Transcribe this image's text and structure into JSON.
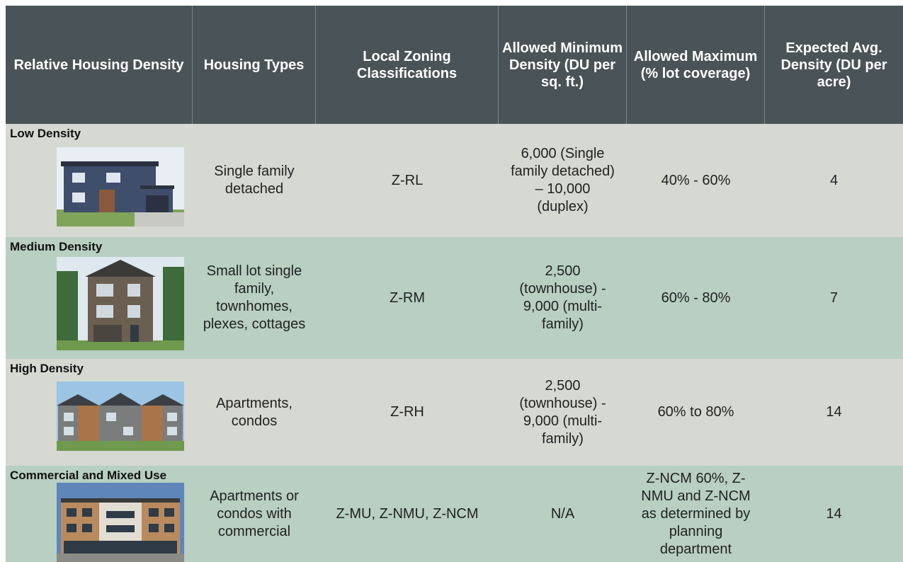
{
  "table": {
    "headers": [
      "Relative Housing Density",
      "Housing Types",
      "Local Zoning Classifications",
      "Allowed Minimum Density (DU per sq. ft.)",
      "Allowed Maximum (% lot coverage)",
      "Expected Avg. Density (DU per acre)"
    ],
    "rows": [
      [
        "Low Density",
        "Single family detached",
        "Z-RL",
        "6,000 (Single family detached) – 10,000 (duplex)",
        "40% - 60%",
        "4"
      ],
      [
        "Medium Density",
        "Small lot single family, townhomes, plexes, cottages",
        "Z-RM",
        "2,500 (townhouse) - 9,000 (multi-family)",
        "60% - 80%",
        "7"
      ],
      [
        "High Density",
        "Apartments, condos",
        "Z-RH",
        "2,500 (townhouse) - 9,000 (multi-family)",
        "60% to 80%",
        "14"
      ],
      [
        "Commercial and Mixed Use",
        "Apartments or condos with commercial",
        "Z-MU, Z-NMU, Z-NCM",
        "N/A",
        "Z-NCM 60%, Z-NMU and Z-NCM as determined by planning department",
        "14"
      ]
    ]
  }
}
